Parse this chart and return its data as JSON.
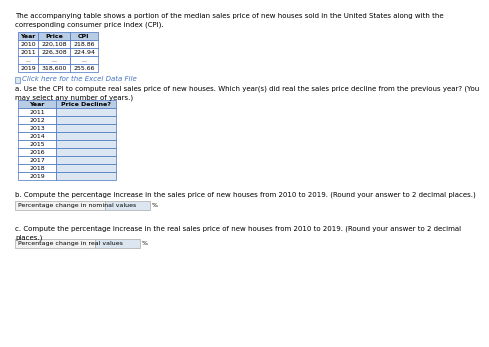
{
  "title_text": "The accompanying table shows a portion of the median sales price of new houses sold in the United States along with the\ncorresponding consumer price index (CPI).",
  "top_table_headers": [
    "Year",
    "Price",
    "CPI"
  ],
  "top_table_rows": [
    [
      "2010",
      "220,108",
      "218.86"
    ],
    [
      "2011",
      "226,308",
      "224.94"
    ],
    [
      "...",
      "...",
      "..."
    ],
    [
      "2019",
      "318,600",
      "255.66"
    ]
  ],
  "excel_link": "Click here for the Excel Data File",
  "part_a_text": "a. Use the CPI to compute real sales price of new houses. Which year(s) did real the sales price decline from the previous year? (You\nmay select any number of years.)",
  "part_a_table_headers": [
    "Year",
    "Price Decline?"
  ],
  "part_a_years": [
    "2011",
    "2012",
    "2013",
    "2014",
    "2015",
    "2016",
    "2017",
    "2018",
    "2019"
  ],
  "part_b_text": "b. Compute the percentage increase in the sales price of new houses from 2010 to 2019. (Round your answer to 2 decimal places.)",
  "part_b_label": "Percentage change in nominal values",
  "part_b_unit": "%",
  "part_c_text": "c. Compute the percentage increase in the real sales price of new houses from 2010 to 2019. (Round your answer to 2 decimal\nplaces.)",
  "part_c_label": "Percentage change in real values",
  "part_c_unit": "%",
  "bg_color": "#ffffff",
  "table_header_bg": "#b8cce4",
  "table_row_bg": "#ffffff",
  "table_border_color": "#4472c4",
  "input_box_bg": "#dce6f1",
  "link_color": "#4472c4",
  "highlight_color": "#ff0000",
  "text_color": "#000000",
  "title_fontsize": 5.0,
  "body_fontsize": 4.8,
  "table_fontsize": 4.5
}
